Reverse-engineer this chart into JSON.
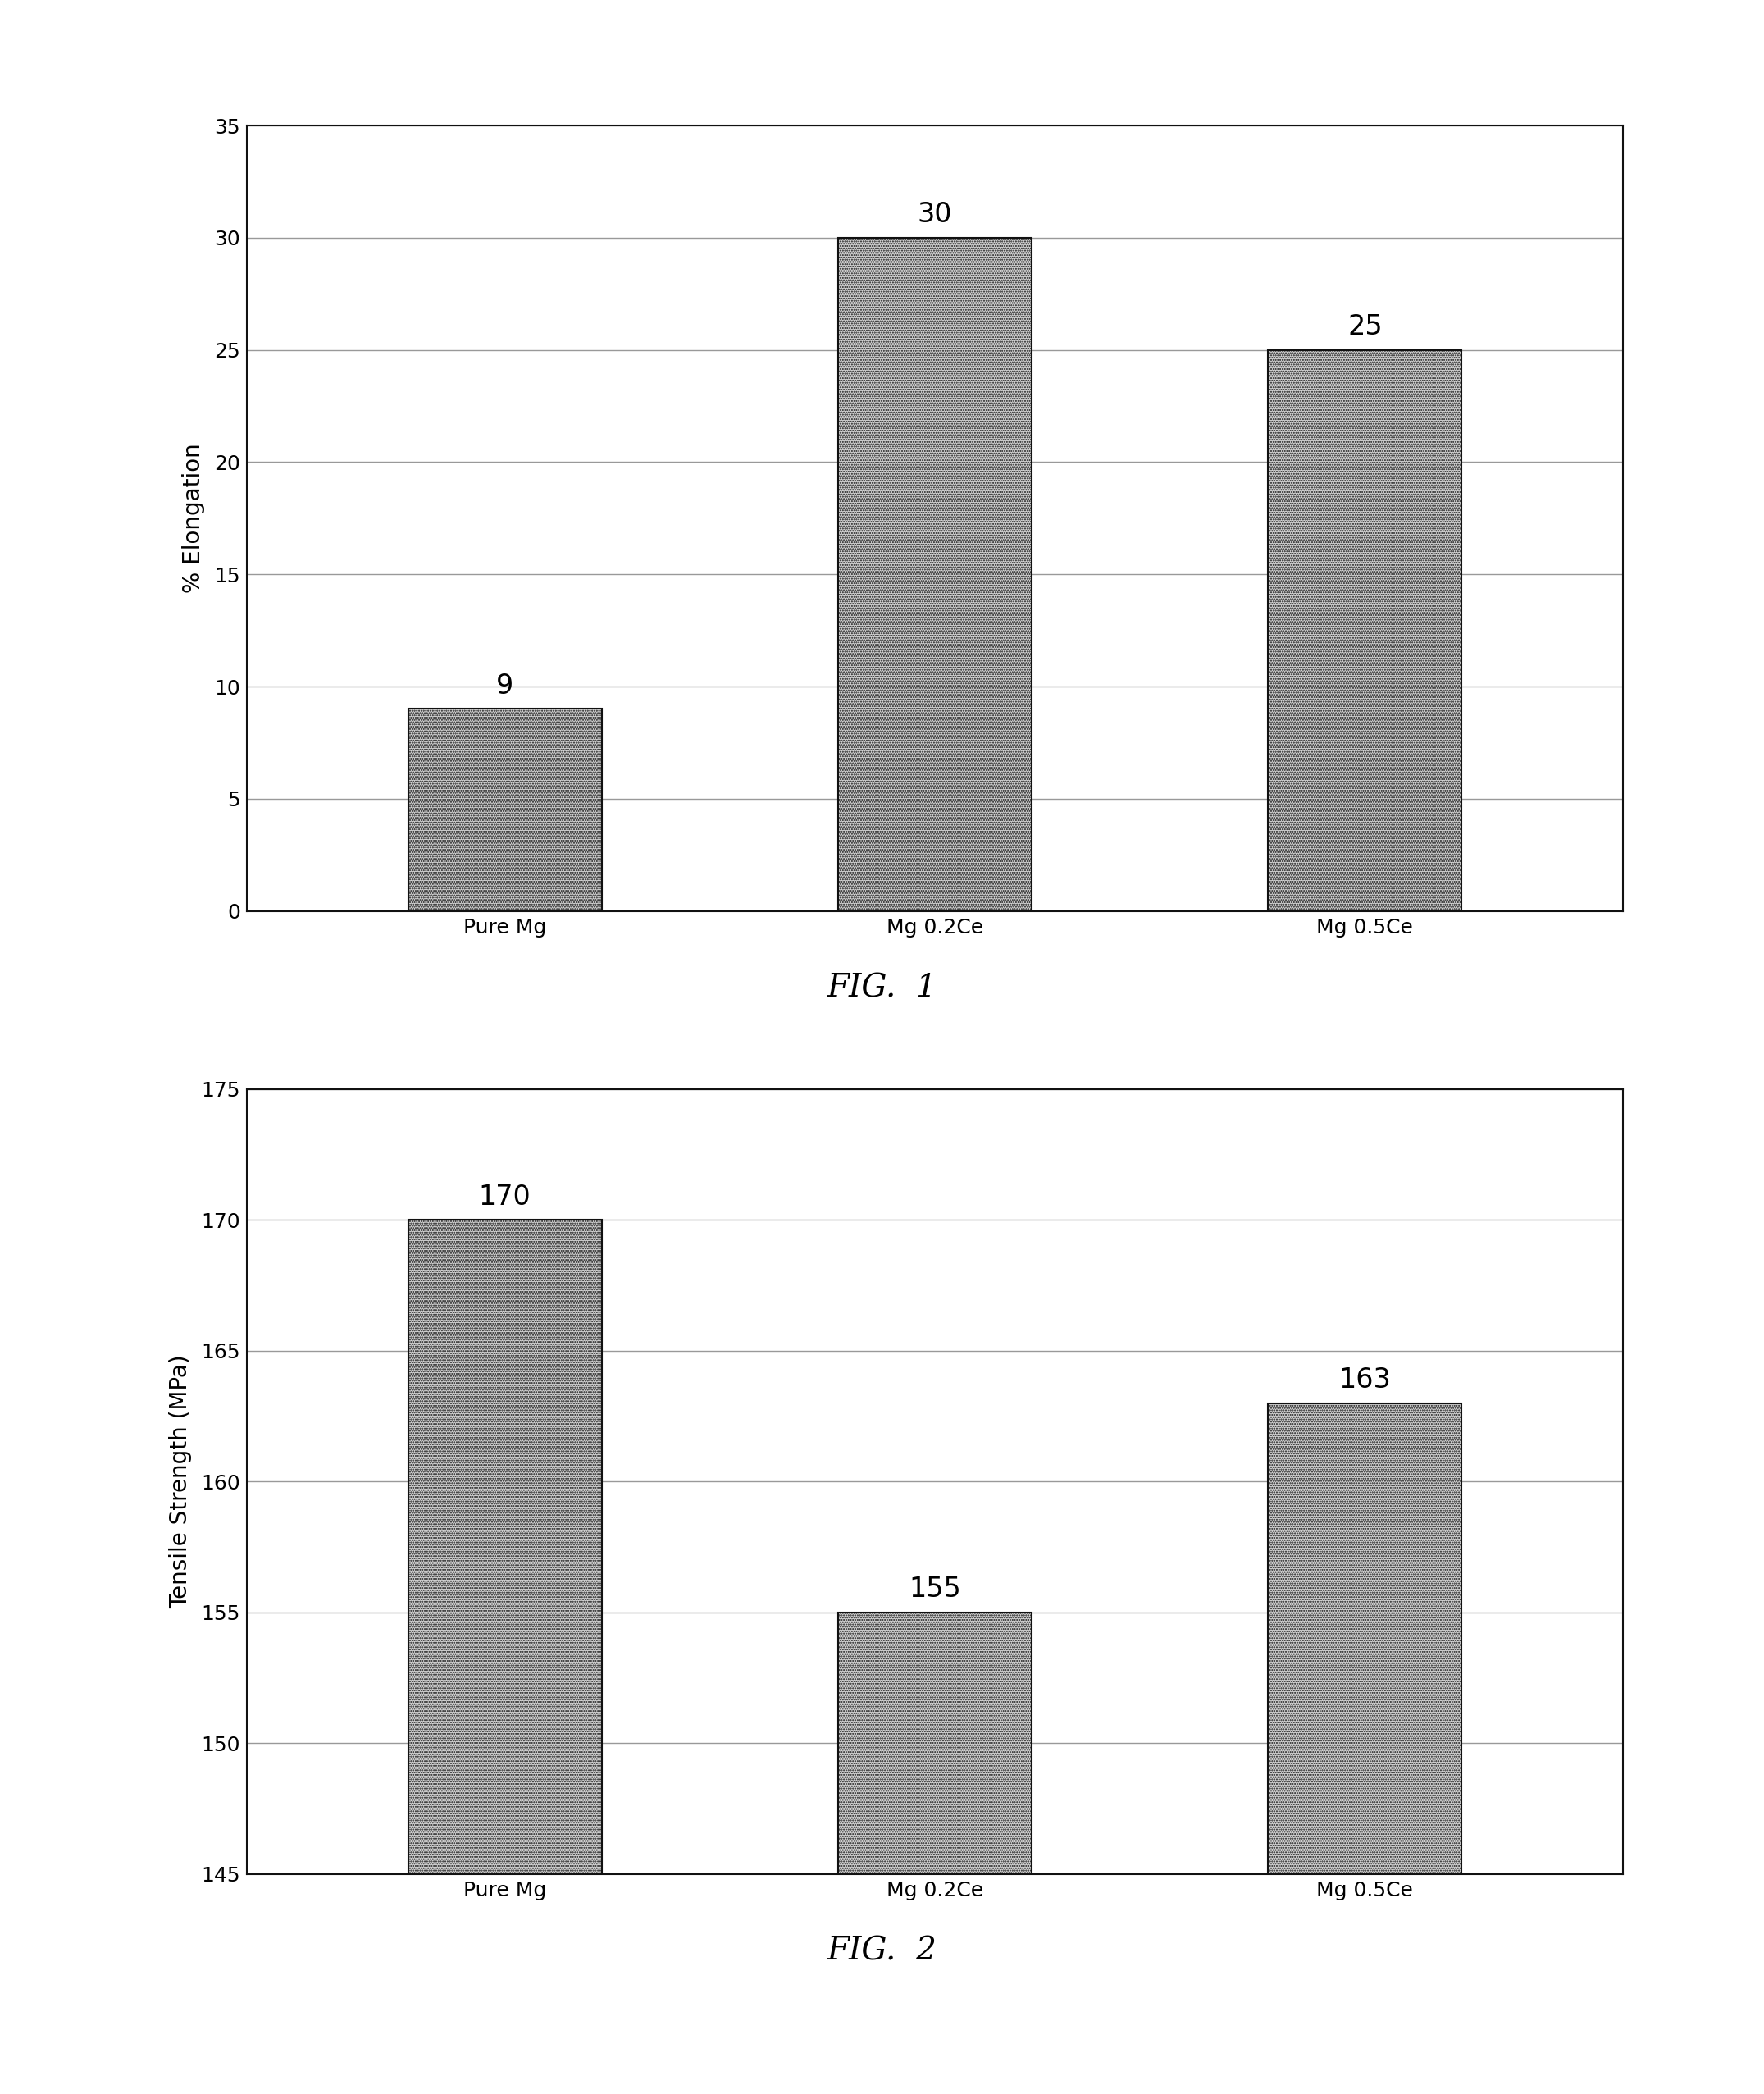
{
  "fig1": {
    "categories": [
      "Pure Mg",
      "Mg 0.2Ce",
      "Mg 0.5Ce"
    ],
    "values": [
      9,
      30,
      25
    ],
    "ylabel": "% Elongation",
    "ylim": [
      0,
      35
    ],
    "yticks": [
      0,
      5,
      10,
      15,
      20,
      25,
      30,
      35
    ],
    "caption": "FIG.  1",
    "bar_color": "#d0d0d0",
    "bar_edge_color": "#111111",
    "label_fontsize": 20,
    "tick_fontsize": 18,
    "value_fontsize": 24,
    "caption_fontsize": 28
  },
  "fig2": {
    "categories": [
      "Pure Mg",
      "Mg 0.2Ce",
      "Mg 0.5Ce"
    ],
    "values": [
      170,
      155,
      163
    ],
    "ylabel": "Tensile Strength (MPa)",
    "ylim": [
      145,
      175
    ],
    "yticks": [
      145,
      150,
      155,
      160,
      165,
      170,
      175
    ],
    "caption": "FIG.  2",
    "bar_color": "#d0d0d0",
    "bar_edge_color": "#111111",
    "label_fontsize": 20,
    "tick_fontsize": 18,
    "value_fontsize": 24,
    "caption_fontsize": 28
  },
  "background_color": "#ffffff",
  "bar_width": 0.45,
  "grid_color": "#999999",
  "grid_linewidth": 1.0
}
